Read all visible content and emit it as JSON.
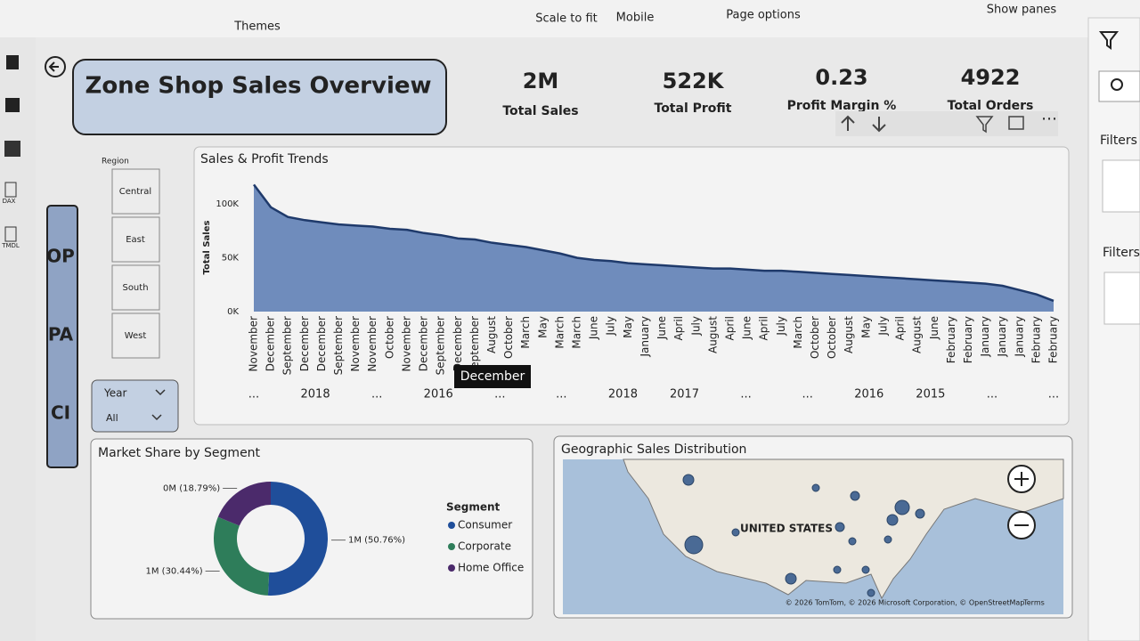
{
  "toolbar": {
    "themes": "Themes",
    "scale_to_fit": "Scale to fit",
    "mobile": "Mobile",
    "page_options": "Page options",
    "show_panes": "Show panes"
  },
  "left_rail": [
    "DAX",
    "TMDL"
  ],
  "header": {
    "title": "Zone Shop Sales Overview"
  },
  "kpis": [
    {
      "value": "2M",
      "label": "Total Sales"
    },
    {
      "value": "522K",
      "label": "Total Profit"
    },
    {
      "value": "0.23",
      "label": "Profit Margin %"
    },
    {
      "value": "4922",
      "label": "Total Orders"
    }
  ],
  "region_slicer": {
    "title": "Region",
    "items": [
      "Central",
      "East",
      "South",
      "West"
    ]
  },
  "nav_buttons": [
    "OP",
    "PA",
    "CI"
  ],
  "year_slicer": {
    "title": "Year",
    "value": "All"
  },
  "filters_pane": {
    "labels": [
      "Filters",
      "Filters"
    ]
  },
  "map": {
    "title": "Geographic Sales Distribution",
    "country_label": "UNITED STATES",
    "attribution": "© 2026 TomTom, © 2026 Microsoft Corporation, © OpenStreetMap",
    "terms": "Terms"
  },
  "chart_data": [
    {
      "type": "area",
      "title": "Sales & Profit Trends",
      "y_label": "Total Sales",
      "categories": [
        "November",
        "December",
        "September",
        "December",
        "December",
        "September",
        "November",
        "November",
        "October",
        "November",
        "December",
        "September",
        "December",
        "September",
        "August",
        "October",
        "March",
        "May",
        "March",
        "March",
        "June",
        "July",
        "May",
        "January",
        "June",
        "April",
        "July",
        "August",
        "April",
        "June",
        "April",
        "July",
        "March",
        "October",
        "October",
        "August",
        "May",
        "July",
        "April",
        "August",
        "June",
        "February",
        "February",
        "January",
        "January",
        "January",
        "February",
        "February"
      ],
      "values": [
        118000,
        97000,
        88000,
        85000,
        83000,
        81000,
        80000,
        79000,
        77000,
        76000,
        73000,
        71000,
        68000,
        67000,
        64000,
        62000,
        60000,
        57000,
        54000,
        50000,
        48000,
        47000,
        45000,
        44000,
        43000,
        42000,
        41000,
        40000,
        40000,
        39000,
        38000,
        38000,
        37000,
        36000,
        35000,
        34000,
        33000,
        32000,
        31000,
        30000,
        29000,
        28000,
        27000,
        26000,
        24000,
        20000,
        16000,
        10000
      ],
      "color": "#6f8cbc",
      "line_color": "#1f3a6b",
      "ylim": [
        0,
        120000
      ],
      "yticks": [
        {
          "value": 0,
          "label": "0K"
        },
        {
          "value": 50000,
          "label": "50K"
        },
        {
          "value": 100000,
          "label": "100K"
        }
      ],
      "year_labels": [
        "...",
        "2018",
        "...",
        "2016",
        "...",
        "...",
        "2018",
        "2017",
        "...",
        "...",
        "2016",
        "2015",
        "...",
        "..."
      ],
      "tooltip": "December"
    },
    {
      "type": "donut",
      "title": "Market Share by Segment",
      "legend_title": "Segment",
      "categories": [
        "Consumer",
        "Corporate",
        "Home Office"
      ],
      "values": [
        50.76,
        30.44,
        18.79
      ],
      "value_labels": [
        "1M (50.76%)",
        "1M (30.44%)",
        "0M (18.79%)"
      ],
      "colors": [
        "#1f4e9a",
        "#2e7d5a",
        "#4b2a6b"
      ]
    }
  ]
}
